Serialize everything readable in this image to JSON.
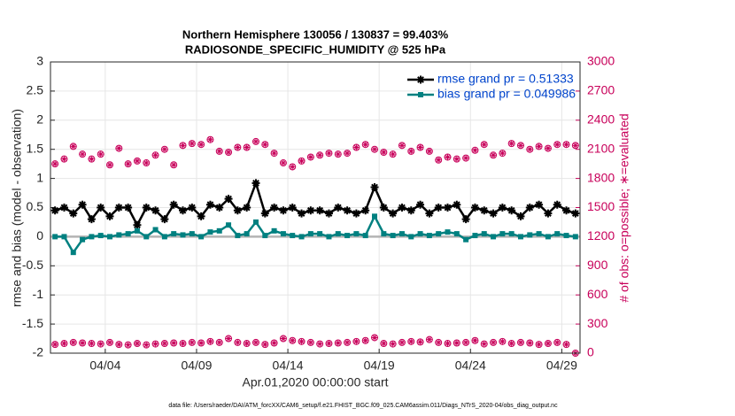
{
  "chart_data": {
    "type": "line",
    "title": "Northern Hemisphere 130056 / 130837 = 99.403%",
    "subtitle": "RADIOSONDE_SPECIFIC_HUMIDITY @ 525 hPa",
    "xlabel": "Apr.01,2020 00:00:00 start",
    "ylabel": "rmse and bias (model - observation)",
    "y2label": "# of obs: o=possible; ∗=evaluated",
    "footnote": "data file: /Users/raeder/DAI/ATM_forcXX/CAM6_setup/f.e21.FHIST_BGC.f09_025.CAM6assim.011/Diags_NTrS_2020-04/obs_diag_output.nc",
    "grid": true,
    "legend": "upper right",
    "xlim": [
      0,
      29
    ],
    "xticks": [
      {
        "value": 3,
        "label": "04/04"
      },
      {
        "value": 8,
        "label": "04/09"
      },
      {
        "value": 13,
        "label": "04/14"
      },
      {
        "value": 18,
        "label": "04/19"
      },
      {
        "value": 23,
        "label": "04/24"
      },
      {
        "value": 28,
        "label": "04/29"
      }
    ],
    "ylim": [
      -2,
      3
    ],
    "yticks": [
      -2,
      -1.5,
      -1,
      -0.5,
      0,
      0.5,
      1,
      1.5,
      2,
      2.5,
      3
    ],
    "y2lim": [
      0,
      3000
    ],
    "y2ticks": [
      0,
      300,
      600,
      900,
      1200,
      1500,
      1800,
      2100,
      2400,
      2700,
      3000
    ],
    "y2color": "#c8005a",
    "x": [
      0.25,
      0.75,
      1.25,
      1.75,
      2.25,
      2.75,
      3.25,
      3.75,
      4.25,
      4.75,
      5.25,
      5.75,
      6.25,
      6.75,
      7.25,
      7.75,
      8.25,
      8.75,
      9.25,
      9.75,
      10.25,
      10.75,
      11.25,
      11.75,
      12.25,
      12.75,
      13.25,
      13.75,
      14.25,
      14.75,
      15.25,
      15.75,
      16.25,
      16.75,
      17.25,
      17.75,
      18.25,
      18.75,
      19.25,
      19.75,
      20.25,
      20.75,
      21.25,
      21.75,
      22.25,
      22.75,
      23.25,
      23.75,
      24.25,
      24.75,
      25.25,
      25.75,
      26.25,
      26.75,
      27.25,
      27.75,
      28.25,
      28.75
    ],
    "series": [
      {
        "name": "rmse grand pr = 0.51333",
        "color": "#000000",
        "marker": "star",
        "values": [
          0.45,
          0.5,
          0.4,
          0.55,
          0.3,
          0.5,
          0.35,
          0.5,
          0.5,
          0.2,
          0.5,
          0.45,
          0.3,
          0.55,
          0.45,
          0.5,
          0.35,
          0.55,
          0.5,
          0.65,
          0.45,
          0.5,
          0.92,
          0.4,
          0.5,
          0.45,
          0.5,
          0.4,
          0.45,
          0.45,
          0.4,
          0.5,
          0.45,
          0.4,
          0.45,
          0.85,
          0.5,
          0.4,
          0.5,
          0.45,
          0.55,
          0.4,
          0.5,
          0.5,
          0.55,
          0.3,
          0.5,
          0.45,
          0.4,
          0.5,
          0.45,
          0.35,
          0.5,
          0.55,
          0.4,
          0.55,
          0.45,
          0.4
        ]
      },
      {
        "name": "bias grand pr = 0.049986",
        "color": "#008080",
        "marker": "square",
        "values": [
          0.0,
          0.0,
          -0.27,
          -0.05,
          0.0,
          0.02,
          0.0,
          0.03,
          0.05,
          0.1,
          0.0,
          0.12,
          0.0,
          0.05,
          0.03,
          0.05,
          0.0,
          0.08,
          0.1,
          0.2,
          0.02,
          0.05,
          0.25,
          0.02,
          0.1,
          0.05,
          0.02,
          0.0,
          0.05,
          0.05,
          0.0,
          0.05,
          0.02,
          0.05,
          0.02,
          0.35,
          0.05,
          0.02,
          0.05,
          0.0,
          0.05,
          0.02,
          0.05,
          0.08,
          0.05,
          -0.05,
          0.02,
          0.05,
          0.0,
          0.05,
          0.05,
          0.0,
          0.03,
          0.05,
          0.0,
          0.05,
          0.02,
          0.0
        ]
      },
      {
        "axis": "y2",
        "color": "#c8005a",
        "marker": "circle-star",
        "values": [
          1950,
          2000,
          2130,
          2050,
          2000,
          2050,
          1940,
          2110,
          1950,
          1980,
          1960,
          2040,
          2100,
          1940,
          2140,
          2160,
          2150,
          2200,
          2080,
          2070,
          2120,
          2120,
          2180,
          2150,
          2060,
          1960,
          1920,
          1980,
          2020,
          2040,
          2060,
          2050,
          2060,
          2120,
          2150,
          2100,
          2070,
          2050,
          2140,
          2080,
          2120,
          2080,
          1990,
          2020,
          2000,
          2010,
          2090,
          2150,
          2040,
          2060,
          2160,
          2140,
          2100,
          2130,
          2110,
          2150,
          2150,
          2140
        ]
      },
      {
        "axis": "y2",
        "color": "#c8005a",
        "marker": "circle-star",
        "values": [
          90,
          100,
          110,
          105,
          100,
          95,
          110,
          90,
          85,
          100,
          85,
          95,
          100,
          105,
          100,
          110,
          105,
          120,
          110,
          150,
          110,
          100,
          110,
          90,
          105,
          150,
          130,
          120,
          110,
          95,
          100,
          105,
          110,
          120,
          130,
          160,
          100,
          95,
          110,
          120,
          115,
          140,
          110,
          100,
          105,
          110,
          130,
          95,
          110,
          120,
          100,
          110,
          105,
          90,
          100,
          110,
          90,
          0
        ]
      }
    ]
  }
}
